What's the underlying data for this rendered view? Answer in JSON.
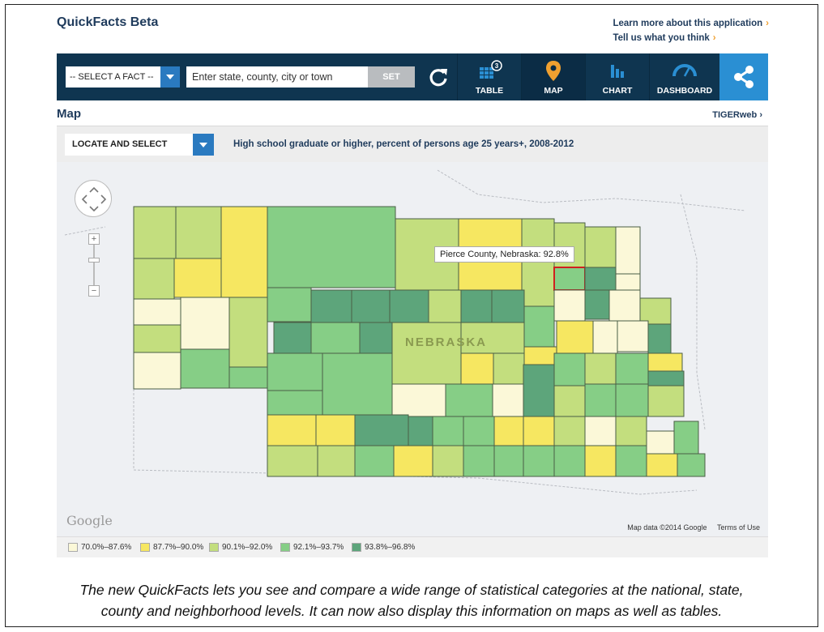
{
  "app": {
    "title": "QuickFacts Beta"
  },
  "top_links": [
    {
      "label": "Learn more about this application"
    },
    {
      "label": "Tell us what you think"
    }
  ],
  "toolbar": {
    "select_fact_label": "-- SELECT A FACT --",
    "search_placeholder": "Enter state, county, city or town",
    "set_label": "SET",
    "table_label": "TABLE",
    "table_badge": "3",
    "map_label": "MAP",
    "chart_label": "CHART",
    "dashboard_label": "DASHBOARD",
    "accent_color": "#f0a030",
    "bar_color": "#0f3550",
    "share_color": "#2a8fd3"
  },
  "map_section": {
    "heading": "Map",
    "tigerweb_link": "TIGERweb ›",
    "locate_select_label": "LOCATE AND SELECT",
    "fact_title": "High school graduate or higher, percent of persons age 25 years+, 2008-2012",
    "state_label": "NEBRASKA",
    "tooltip": "Pierce County, Nebraska: 92.8%",
    "google_logo": "Google",
    "map_data_credit": "Map data ©2014 Google",
    "terms_link": "Terms of Use"
  },
  "legend": [
    {
      "label": "70.0%–87.6%",
      "color": "#fbf8d8"
    },
    {
      "label": "87.7%–90.0%",
      "color": "#f6e761"
    },
    {
      "label": "90.1%–92.0%",
      "color": "#c3de7e"
    },
    {
      "label": "92.1%–93.7%",
      "color": "#86ce86"
    },
    {
      "label": "93.8%–96.8%",
      "color": "#5da57b"
    }
  ],
  "caption": {
    "line1": "The new QuickFacts lets you see and compare a wide range of statistical categories at the national, state,",
    "line2": "county and neighborhood levels. It can now also display this information on maps as well as tables."
  }
}
